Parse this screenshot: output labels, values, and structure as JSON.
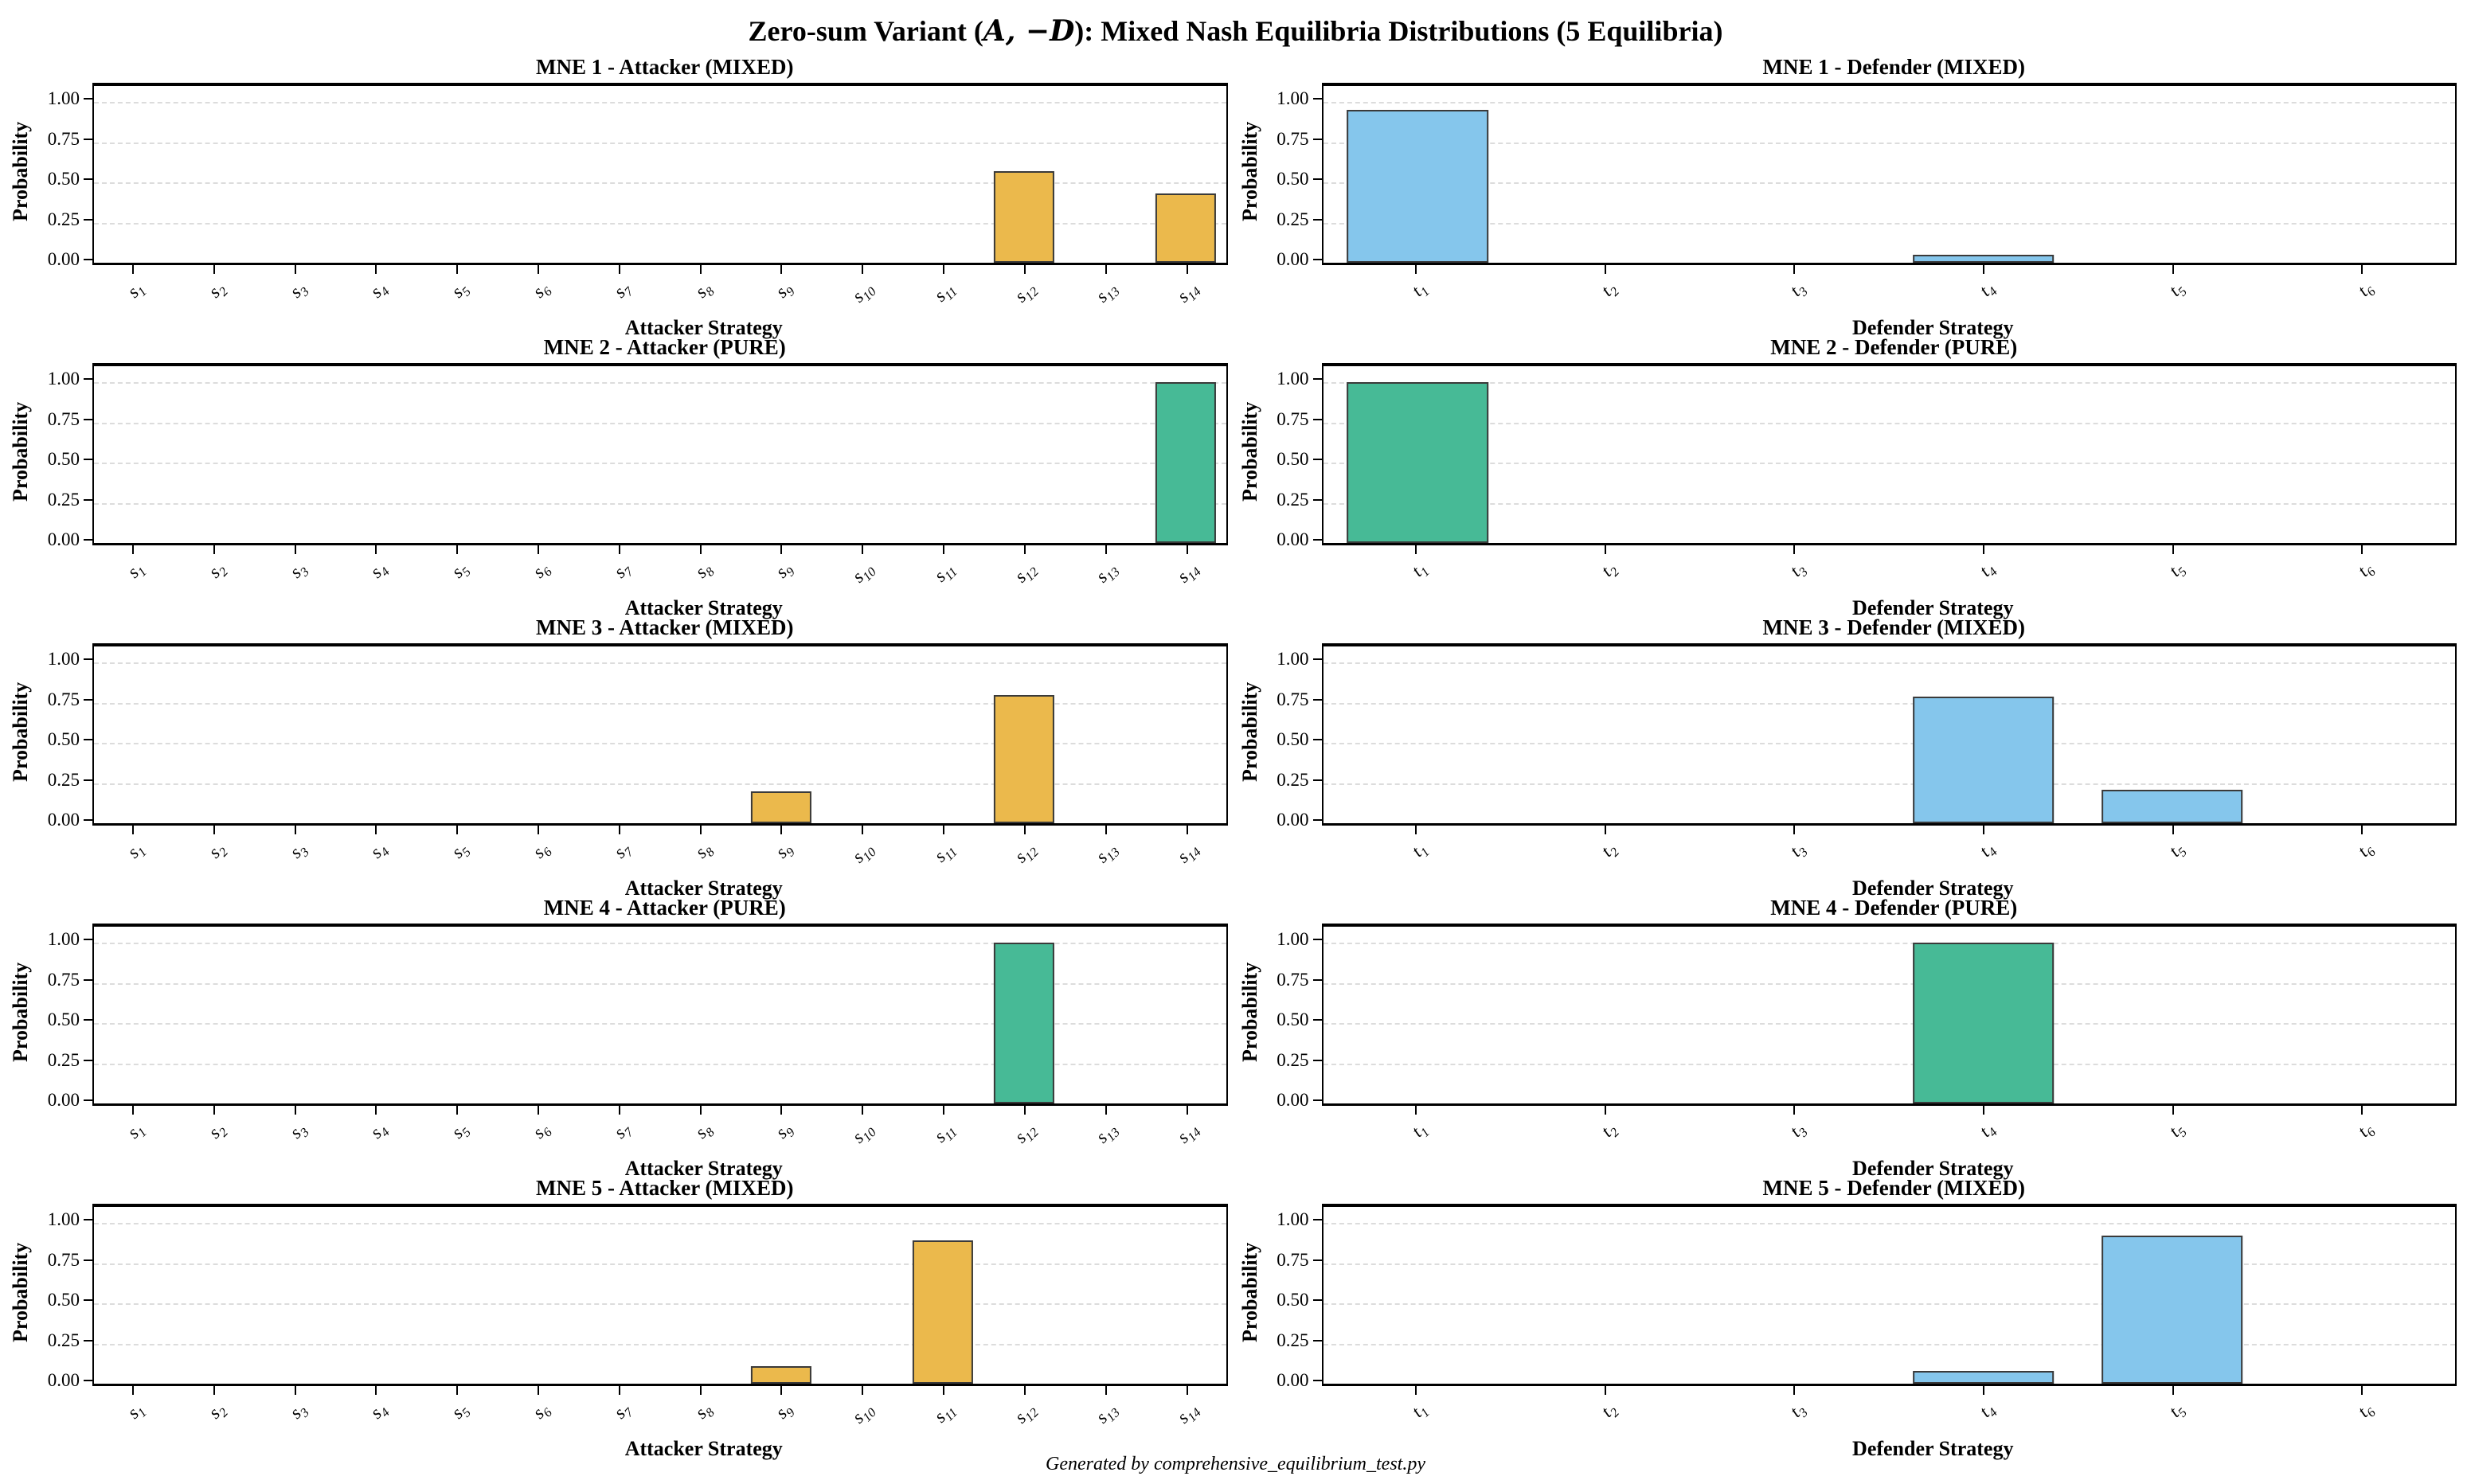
{
  "figure": {
    "title_pre": "Zero-sum Variant (",
    "title_math": "A, −D",
    "title_post": "): Mixed Nash Equilibria Distributions (5 Equilibria)",
    "footer": "Generated by comprehensive_equilibrium_test.py"
  },
  "axis": {
    "ylabel": "Probability",
    "yticks": [
      0.0,
      0.25,
      0.5,
      0.75,
      1.0
    ],
    "ytick_labels": [
      "0.00",
      "0.25",
      "0.50",
      "0.75",
      "1.00"
    ],
    "ymax": 1.1,
    "grid": "dashed-horizontal",
    "attacker_xlabel": "Attacker Strategy",
    "defender_xlabel": "Defender Strategy"
  },
  "colors": {
    "mixed_attacker_fill": "#EBB94C",
    "mixed_defender_fill": "#85C6EC",
    "pure_fill": "#47BA96",
    "bar_edge": "#3a3a3a",
    "gridline": "#dcdcdc"
  },
  "chart_data": [
    {
      "type": "bar",
      "title": "MNE 1 - Attacker (MIXED)",
      "xlabel": "Attacker Strategy",
      "ylabel": "Probability",
      "ylim": [
        0,
        1.1
      ],
      "categories": [
        "s1",
        "s2",
        "s3",
        "s4",
        "s5",
        "s6",
        "s7",
        "s8",
        "s9",
        "s10",
        "s11",
        "s12",
        "s13",
        "s14"
      ],
      "values": [
        0,
        0,
        0,
        0,
        0,
        0,
        0,
        0,
        0,
        0,
        0,
        0.57,
        0,
        0.43
      ],
      "bar_color": "#EBB94C"
    },
    {
      "type": "bar",
      "title": "MNE 1 - Defender (MIXED)",
      "xlabel": "Defender Strategy",
      "ylabel": "Probability",
      "ylim": [
        0,
        1.1
      ],
      "categories": [
        "t1",
        "t2",
        "t3",
        "t4",
        "t5",
        "t6"
      ],
      "values": [
        0.95,
        0,
        0,
        0.05,
        0,
        0
      ],
      "bar_color": "#85C6EC"
    },
    {
      "type": "bar",
      "title": "MNE 2 - Attacker (PURE)",
      "xlabel": "Attacker Strategy",
      "ylabel": "Probability",
      "ylim": [
        0,
        1.1
      ],
      "categories": [
        "s1",
        "s2",
        "s3",
        "s4",
        "s5",
        "s6",
        "s7",
        "s8",
        "s9",
        "s10",
        "s11",
        "s12",
        "s13",
        "s14"
      ],
      "values": [
        0,
        0,
        0,
        0,
        0,
        0,
        0,
        0,
        0,
        0,
        0,
        0,
        0,
        1.0
      ],
      "bar_color": "#47BA96"
    },
    {
      "type": "bar",
      "title": "MNE 2 - Defender (PURE)",
      "xlabel": "Defender Strategy",
      "ylabel": "Probability",
      "ylim": [
        0,
        1.1
      ],
      "categories": [
        "t1",
        "t2",
        "t3",
        "t4",
        "t5",
        "t6"
      ],
      "values": [
        1.0,
        0,
        0,
        0,
        0,
        0
      ],
      "bar_color": "#47BA96"
    },
    {
      "type": "bar",
      "title": "MNE 3 - Attacker (MIXED)",
      "xlabel": "Attacker Strategy",
      "ylabel": "Probability",
      "ylim": [
        0,
        1.1
      ],
      "categories": [
        "s1",
        "s2",
        "s3",
        "s4",
        "s5",
        "s6",
        "s7",
        "s8",
        "s9",
        "s10",
        "s11",
        "s12",
        "s13",
        "s14"
      ],
      "values": [
        0,
        0,
        0,
        0,
        0,
        0,
        0,
        0,
        0.2,
        0,
        0,
        0.8,
        0,
        0
      ],
      "bar_color": "#EBB94C"
    },
    {
      "type": "bar",
      "title": "MNE 3 - Defender (MIXED)",
      "xlabel": "Defender Strategy",
      "ylabel": "Probability",
      "ylim": [
        0,
        1.1
      ],
      "categories": [
        "t1",
        "t2",
        "t3",
        "t4",
        "t5",
        "t6"
      ],
      "values": [
        0,
        0,
        0,
        0.79,
        0.21,
        0
      ],
      "bar_color": "#85C6EC"
    },
    {
      "type": "bar",
      "title": "MNE 4 - Attacker (PURE)",
      "xlabel": "Attacker Strategy",
      "ylabel": "Probability",
      "ylim": [
        0,
        1.1
      ],
      "categories": [
        "s1",
        "s2",
        "s3",
        "s4",
        "s5",
        "s6",
        "s7",
        "s8",
        "s9",
        "s10",
        "s11",
        "s12",
        "s13",
        "s14"
      ],
      "values": [
        0,
        0,
        0,
        0,
        0,
        0,
        0,
        0,
        0,
        0,
        0,
        1.0,
        0,
        0
      ],
      "bar_color": "#47BA96"
    },
    {
      "type": "bar",
      "title": "MNE 4 - Defender (PURE)",
      "xlabel": "Defender Strategy",
      "ylabel": "Probability",
      "ylim": [
        0,
        1.1
      ],
      "categories": [
        "t1",
        "t2",
        "t3",
        "t4",
        "t5",
        "t6"
      ],
      "values": [
        0,
        0,
        0,
        1.0,
        0,
        0
      ],
      "bar_color": "#47BA96"
    },
    {
      "type": "bar",
      "title": "MNE 5 - Attacker (MIXED)",
      "xlabel": "Attacker Strategy",
      "ylabel": "Probability",
      "ylim": [
        0,
        1.1
      ],
      "categories": [
        "s1",
        "s2",
        "s3",
        "s4",
        "s5",
        "s6",
        "s7",
        "s8",
        "s9",
        "s10",
        "s11",
        "s12",
        "s13",
        "s14"
      ],
      "values": [
        0,
        0,
        0,
        0,
        0,
        0,
        0,
        0,
        0.11,
        0,
        0.89,
        0,
        0,
        0
      ],
      "bar_color": "#EBB94C"
    },
    {
      "type": "bar",
      "title": "MNE 5 - Defender (MIXED)",
      "xlabel": "Defender Strategy",
      "ylabel": "Probability",
      "ylim": [
        0,
        1.1
      ],
      "categories": [
        "t1",
        "t2",
        "t3",
        "t4",
        "t5",
        "t6"
      ],
      "values": [
        0,
        0,
        0,
        0.08,
        0.92,
        0
      ],
      "bar_color": "#85C6EC"
    }
  ]
}
